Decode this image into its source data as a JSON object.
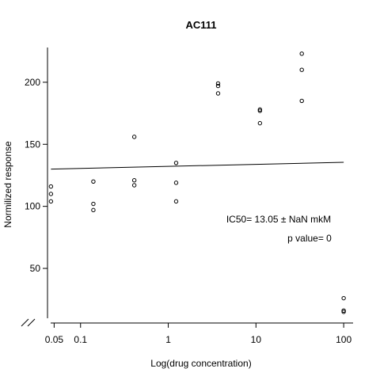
{
  "chart_data": {
    "type": "scatter",
    "title": "AC111",
    "xlabel": "Log(drug concentration)",
    "ylabel": "Normilized response",
    "x_scale": "log",
    "x_ticks": [
      0.05,
      0.1,
      1,
      10,
      100
    ],
    "x_tick_labels": [
      "0.05",
      "0.1",
      "1",
      "10",
      "100"
    ],
    "y_ticks": [
      50,
      100,
      150,
      200
    ],
    "y_tick_labels": [
      "50",
      "100",
      "150",
      "200"
    ],
    "xlim": [
      0.042,
      128
    ],
    "ylim": [
      6,
      228
    ],
    "axis_break": true,
    "grid": false,
    "points": [
      {
        "x": 0.046,
        "y": 116
      },
      {
        "x": 0.046,
        "y": 110
      },
      {
        "x": 0.046,
        "y": 104
      },
      {
        "x": 0.14,
        "y": 120
      },
      {
        "x": 0.14,
        "y": 102
      },
      {
        "x": 0.14,
        "y": 97
      },
      {
        "x": 0.41,
        "y": 156
      },
      {
        "x": 0.41,
        "y": 121
      },
      {
        "x": 0.41,
        "y": 117
      },
      {
        "x": 1.23,
        "y": 135
      },
      {
        "x": 1.23,
        "y": 119
      },
      {
        "x": 1.23,
        "y": 104
      },
      {
        "x": 3.7,
        "y": 199
      },
      {
        "x": 3.7,
        "y": 197
      },
      {
        "x": 3.7,
        "y": 191
      },
      {
        "x": 11.1,
        "y": 178
      },
      {
        "x": 11.1,
        "y": 177
      },
      {
        "x": 11.1,
        "y": 167
      },
      {
        "x": 33.3,
        "y": 223
      },
      {
        "x": 33.3,
        "y": 210
      },
      {
        "x": 33.3,
        "y": 185
      },
      {
        "x": 100,
        "y": 26
      },
      {
        "x": 100,
        "y": 16
      },
      {
        "x": 100,
        "y": 15
      }
    ],
    "fit_line": {
      "x": [
        0.046,
        100
      ],
      "y": [
        130,
        135.5
      ]
    },
    "annotations": [
      "IC50= 13.05 ± NaN mkM",
      "p value= 0"
    ]
  }
}
